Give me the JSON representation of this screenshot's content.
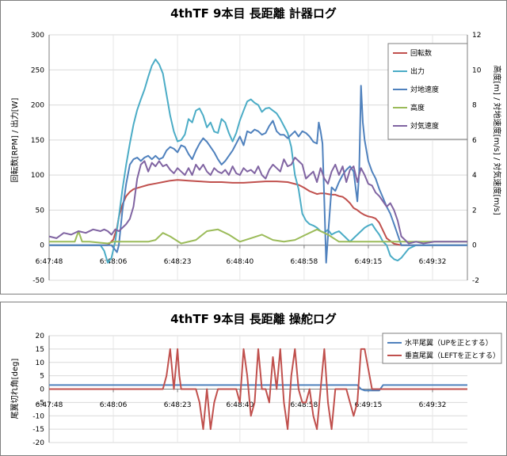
{
  "chart_data": [
    {
      "type": "line",
      "title": "4thTF 9本目 長距離 計器ログ",
      "ylabel": "回転数[RPM] / 出力[W]",
      "y2label": "高度[m] / 対地速度[m/s] / 対気速度[m/s]",
      "ylim": [
        -50,
        300
      ],
      "y2lim": [
        -2,
        12
      ],
      "yticks": [
        -50,
        0,
        50,
        100,
        150,
        200,
        250,
        300
      ],
      "y2ticks": [
        -2,
        0,
        2,
        4,
        6,
        8,
        10,
        12
      ],
      "xlim": [
        0,
        114
      ],
      "xtick_positions": [
        0,
        17.5,
        35,
        52,
        69.5,
        87,
        104.5
      ],
      "xtick_labels": [
        "6:47:48",
        "6:48:06",
        "6:48:23",
        "6:48:40",
        "6:48:58",
        "6:49:15",
        "6:49:32"
      ],
      "grid": true,
      "legend_position": "top-right",
      "series": [
        {
          "name": "回転数",
          "axis": "left",
          "color": "#c0504d",
          "x": [
            0,
            10,
            16,
            17.5,
            18.5,
            19,
            20,
            21,
            22,
            23,
            25,
            27,
            29,
            31,
            33,
            35,
            38,
            41,
            44,
            47,
            50,
            53,
            56,
            59,
            62,
            65,
            68,
            69.5,
            71,
            72,
            73,
            74,
            75,
            76,
            77,
            78,
            79,
            80,
            81,
            82,
            83,
            84,
            85,
            86,
            87,
            88,
            89,
            90,
            92,
            94,
            96,
            98,
            100,
            102,
            104,
            106,
            108,
            110,
            112,
            114
          ],
          "values": [
            0,
            0,
            0,
            8,
            25,
            40,
            58,
            70,
            76,
            80,
            83,
            86,
            88,
            90,
            92,
            93,
            92,
            91,
            90,
            90,
            89,
            89,
            90,
            91,
            91,
            90,
            86,
            82,
            77,
            75,
            73,
            74,
            74,
            73,
            72,
            72,
            70,
            69,
            65,
            60,
            53,
            50,
            46,
            43,
            41,
            40,
            38,
            32,
            10,
            2,
            0,
            0,
            0,
            0,
            0,
            0,
            0,
            0,
            0,
            0
          ]
        },
        {
          "name": "出力",
          "axis": "left",
          "color": "#4bacc6",
          "x": [
            0,
            6,
            12,
            14,
            15,
            16,
            17,
            18,
            19,
            20,
            21,
            22,
            23,
            24,
            25,
            26,
            27,
            28,
            29,
            30,
            31,
            32,
            33,
            34,
            35,
            36,
            37,
            38,
            39,
            40,
            41,
            42,
            43,
            44,
            45,
            46,
            47,
            48,
            49,
            50,
            51,
            52,
            53,
            54,
            55,
            56,
            57,
            58,
            59,
            60,
            61,
            62,
            63,
            64,
            65,
            66,
            67,
            68,
            69,
            70,
            71,
            72,
            73,
            74,
            75,
            76,
            77,
            78,
            79,
            80,
            81,
            82,
            83,
            84,
            85,
            86,
            87,
            88,
            89,
            90,
            91,
            92,
            93,
            94,
            95,
            96,
            98,
            100,
            102,
            104,
            106,
            108,
            110,
            112,
            114
          ],
          "values": [
            0,
            0,
            0,
            0,
            -8,
            -25,
            -18,
            5,
            40,
            80,
            115,
            145,
            172,
            193,
            208,
            222,
            240,
            256,
            265,
            258,
            245,
            215,
            185,
            162,
            148,
            150,
            158,
            180,
            175,
            192,
            195,
            185,
            168,
            175,
            162,
            160,
            180,
            175,
            160,
            148,
            160,
            178,
            192,
            205,
            208,
            203,
            200,
            190,
            195,
            196,
            192,
            188,
            180,
            170,
            160,
            140,
            100,
            80,
            45,
            35,
            30,
            28,
            25,
            20,
            18,
            22,
            15,
            18,
            20,
            15,
            10,
            5,
            10,
            15,
            20,
            25,
            28,
            30,
            22,
            15,
            5,
            0,
            -15,
            -20,
            -22,
            -18,
            -5,
            0,
            0,
            0,
            0,
            0,
            0,
            0,
            0
          ]
        },
        {
          "name": "対地速度",
          "axis": "right",
          "color": "#4f81bd",
          "x": [
            0,
            10,
            17,
            18.5,
            19,
            20,
            21,
            22,
            23,
            24,
            25,
            26,
            27,
            28,
            29,
            30,
            31,
            32,
            33,
            34,
            35,
            36,
            37,
            38,
            39,
            40,
            41,
            42,
            43,
            44,
            45,
            46,
            47,
            48,
            49,
            50,
            51,
            52,
            53,
            54,
            55,
            56,
            57,
            58,
            59,
            60,
            61,
            62,
            63,
            64,
            65,
            66,
            67,
            68,
            69,
            70,
            71,
            72,
            73,
            73.5,
            74,
            74.5,
            75,
            75.5,
            76,
            77,
            78,
            79,
            80,
            81,
            82,
            83,
            84,
            84.5,
            85,
            85.5,
            86,
            87,
            88,
            89,
            90,
            91,
            92,
            93,
            94,
            95,
            96,
            98,
            100,
            105,
            114
          ],
          "values": [
            0,
            0,
            0,
            -0.4,
            0,
            2,
            3.5,
            4.6,
            4.9,
            5,
            4.8,
            5,
            5.1,
            4.9,
            5.1,
            4.9,
            5,
            5.4,
            5.6,
            5.5,
            5.3,
            5.7,
            5.6,
            5.2,
            4.9,
            5.4,
            5.8,
            6.1,
            5.9,
            5.6,
            5.3,
            4.9,
            4.6,
            4.8,
            5.1,
            5.4,
            5.8,
            6.2,
            5.7,
            6.5,
            6.4,
            6.6,
            6.5,
            6.3,
            6.4,
            6.8,
            7.1,
            6.5,
            6.3,
            6.3,
            6.1,
            6.3,
            6.5,
            6.2,
            6.5,
            6.4,
            6.2,
            5.9,
            5.8,
            7.0,
            6.5,
            5.8,
            2.5,
            -1.0,
            0.5,
            3.3,
            3.1,
            3.6,
            4.0,
            4.3,
            4.5,
            4.2,
            2.5,
            4.2,
            9.1,
            7,
            6,
            4.8,
            4.2,
            3.8,
            3.2,
            2.7,
            2.2,
            1.8,
            1.2,
            0.6,
            0,
            0,
            0,
            0,
            0
          ]
        },
        {
          "name": "高度",
          "axis": "right",
          "color": "#9bbb59",
          "x": [
            0,
            7,
            8,
            9,
            11,
            16,
            17.5,
            23,
            27,
            29,
            31,
            33,
            36,
            40,
            43,
            46,
            49,
            52,
            55,
            58,
            61,
            64,
            67,
            70,
            73,
            76,
            79,
            82,
            85,
            88,
            92,
            96,
            100,
            105,
            110,
            114
          ],
          "values": [
            0.2,
            0.2,
            0.8,
            0.2,
            0.2,
            0.1,
            0.2,
            0.2,
            0.2,
            0.3,
            0.7,
            0.5,
            0.1,
            0.3,
            0.8,
            0.9,
            0.6,
            0.2,
            0.4,
            0.6,
            0.3,
            0.2,
            0.3,
            0.6,
            0.9,
            0.6,
            0.2,
            0.2,
            0.2,
            0.2,
            0.2,
            0.2,
            0.2,
            0.2,
            0.2,
            0.2
          ]
        },
        {
          "name": "対気速度",
          "axis": "right",
          "color": "#8064a2",
          "x": [
            0,
            2,
            4,
            6,
            8,
            10,
            12,
            14,
            15,
            16,
            17,
            18,
            19,
            20,
            21,
            22,
            23,
            24,
            25,
            26,
            27,
            28,
            29,
            30,
            31,
            32,
            33,
            34,
            35,
            36,
            37,
            38,
            39,
            40,
            41,
            42,
            43,
            44,
            45,
            46,
            47,
            48,
            49,
            50,
            51,
            52,
            53,
            54,
            55,
            56,
            57,
            58,
            59,
            60,
            61,
            62,
            63,
            64,
            65,
            66,
            67,
            68,
            69,
            70,
            71,
            72,
            73,
            74,
            75,
            76,
            77,
            78,
            79,
            80,
            81,
            82,
            83,
            84,
            85,
            86,
            87,
            88,
            89,
            90,
            91,
            92,
            93,
            94,
            95,
            96,
            98,
            100,
            102,
            105,
            110,
            114
          ],
          "values": [
            0.5,
            0.4,
            0.7,
            0.6,
            0.8,
            0.7,
            0.9,
            0.8,
            0.9,
            0.8,
            0.6,
            0.9,
            0.8,
            1.0,
            1.2,
            1.5,
            2.2,
            3.8,
            4.6,
            4.8,
            4.2,
            4.7,
            4.5,
            4.8,
            4.5,
            4.6,
            4.3,
            4.1,
            4.4,
            4.2,
            4.0,
            4.4,
            4.0,
            4.6,
            4.3,
            4.6,
            4.2,
            4.0,
            4.4,
            4.2,
            4.1,
            4.3,
            4.0,
            4.5,
            4.1,
            4.0,
            4.4,
            4.2,
            4.3,
            4.1,
            4.5,
            4.0,
            3.8,
            4.3,
            4.6,
            4.4,
            4.2,
            4.9,
            4.5,
            4.6,
            5.0,
            4.8,
            4.6,
            3.8,
            4.0,
            4.2,
            3.6,
            4.4,
            3.8,
            3.5,
            4.2,
            4.6,
            4.0,
            4.5,
            3.6,
            4.3,
            4.5,
            3.6,
            4.4,
            4.0,
            3.5,
            3.4,
            3.0,
            2.8,
            2.5,
            2.2,
            2.4,
            2.0,
            1.4,
            0.5,
            0.1,
            0.2,
            0.1,
            0.2,
            0.2,
            0.2
          ]
        }
      ]
    },
    {
      "type": "line",
      "title": "4thTF 9本目 長距離 操舵ログ",
      "ylabel": "尾翼切れ角[deg]",
      "ylim": [
        -20,
        20
      ],
      "yticks": [
        -20,
        -15,
        -10,
        -5,
        0,
        5,
        10,
        15,
        20
      ],
      "xlim": [
        0,
        114
      ],
      "xtick_positions": [
        0,
        17.5,
        35,
        52,
        69.5,
        87,
        104.5
      ],
      "xtick_labels": [
        "6:47:48",
        "6:48:06",
        "6:48:23",
        "6:48:40",
        "6:48:58",
        "6:49:15",
        "6:49:32"
      ],
      "grid": true,
      "legend_position": "top-right",
      "series": [
        {
          "name": "水平尾翼（UPを正とする）",
          "axis": "left",
          "color": "#4f81bd",
          "x": [
            0,
            84,
            85,
            86,
            88,
            90,
            91,
            114
          ],
          "values": [
            1.5,
            1.5,
            0,
            -0.5,
            -0.5,
            -0.5,
            1.5,
            1.5
          ]
        },
        {
          "name": "垂直尾翼（LEFTを正とする）",
          "axis": "left",
          "color": "#c0504d",
          "x": [
            0,
            31,
            32,
            33,
            34,
            35,
            35.5,
            36,
            36.5,
            37,
            40,
            41,
            42,
            43,
            44,
            45,
            46,
            50,
            51,
            52,
            53,
            54,
            55,
            56,
            57,
            58,
            59,
            60,
            61,
            62,
            63,
            64,
            65,
            66,
            67,
            68,
            69,
            70,
            71,
            72,
            73,
            74,
            75,
            76,
            77,
            78,
            79,
            80,
            81,
            83,
            84,
            85,
            86,
            88,
            90,
            114
          ],
          "values": [
            0,
            0,
            5,
            15,
            0,
            15,
            5,
            0,
            0,
            0,
            0,
            -5,
            -15,
            0,
            -15,
            -5,
            0,
            0,
            0,
            -5,
            15,
            5,
            -10,
            -5,
            15,
            0,
            0,
            -5,
            12,
            0,
            15,
            -5,
            -15,
            5,
            15,
            0,
            -5,
            -5,
            0,
            -10,
            -15,
            0,
            15,
            -5,
            -15,
            0,
            0,
            0,
            0,
            -10,
            -5,
            15,
            15,
            0,
            0,
            0
          ]
        }
      ]
    }
  ]
}
